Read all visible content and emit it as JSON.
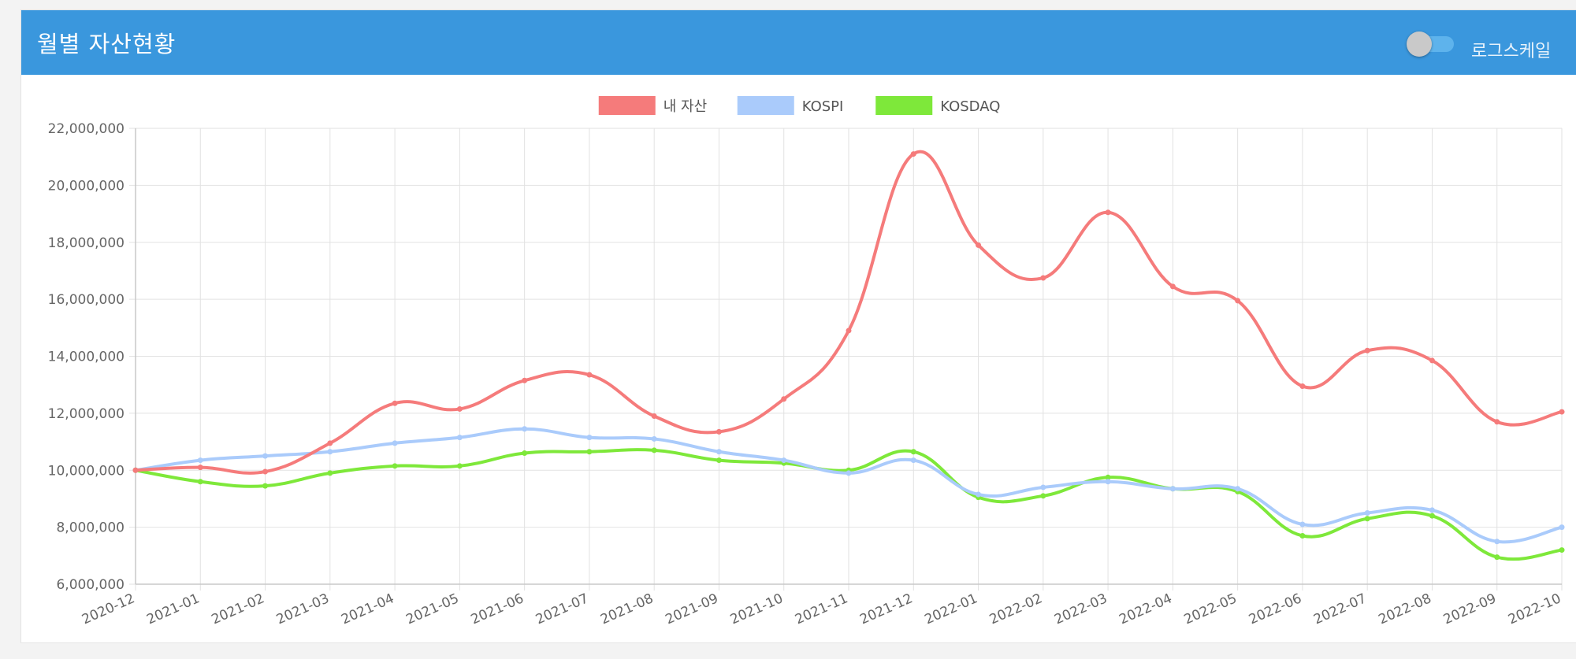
{
  "header": {
    "title": "월별 자산현황",
    "toggle_label": "로그스케일",
    "toggle_on": false
  },
  "colors": {
    "header_bg": "#3a97dd",
    "grid": "#e2e2e2",
    "axis": "#c8c8c8"
  },
  "chart_data": {
    "type": "line",
    "x": [
      "2020-12",
      "2021-01",
      "2021-02",
      "2021-03",
      "2021-04",
      "2021-05",
      "2021-06",
      "2021-07",
      "2021-08",
      "2021-09",
      "2021-10",
      "2021-11",
      "2021-12",
      "2022-01",
      "2022-02",
      "2022-03",
      "2022-04",
      "2022-05",
      "2022-06",
      "2022-07",
      "2022-08",
      "2022-09",
      "2022-10"
    ],
    "series": [
      {
        "name": "내 자산",
        "color": "#f57b7b",
        "values": [
          10000000,
          10100000,
          9950000,
          10950000,
          12350000,
          12150000,
          13150000,
          13350000,
          11900000,
          11350000,
          12500000,
          14900000,
          21100000,
          17900000,
          16750000,
          19050000,
          16450000,
          15950000,
          12950000,
          14200000,
          13850000,
          11700000,
          12050000
        ]
      },
      {
        "name": "KOSPI",
        "color": "#aacbfb",
        "values": [
          10000000,
          10350000,
          10500000,
          10650000,
          10950000,
          11150000,
          11450000,
          11150000,
          11100000,
          10650000,
          10350000,
          9900000,
          10350000,
          9150000,
          9400000,
          9600000,
          9350000,
          9350000,
          8100000,
          8500000,
          8600000,
          7500000,
          8000000
        ]
      },
      {
        "name": "KOSDAQ",
        "color": "#7ee83a",
        "values": [
          10000000,
          9600000,
          9450000,
          9900000,
          10150000,
          10150000,
          10600000,
          10650000,
          10700000,
          10350000,
          10250000,
          10000000,
          10650000,
          9050000,
          9100000,
          9750000,
          9350000,
          9250000,
          7700000,
          8300000,
          8400000,
          6950000,
          7200000
        ]
      }
    ],
    "y_ticks": [
      "22,000,000",
      "20,000,000",
      "18,000,000",
      "16,000,000",
      "14,000,000",
      "12,000,000",
      "10,000,000",
      "8,000,000",
      "6,000,000"
    ],
    "ylim": [
      6000000,
      22000000
    ],
    "grid": true,
    "legend_position": "top-center",
    "title": "",
    "xlabel": "",
    "ylabel": ""
  }
}
